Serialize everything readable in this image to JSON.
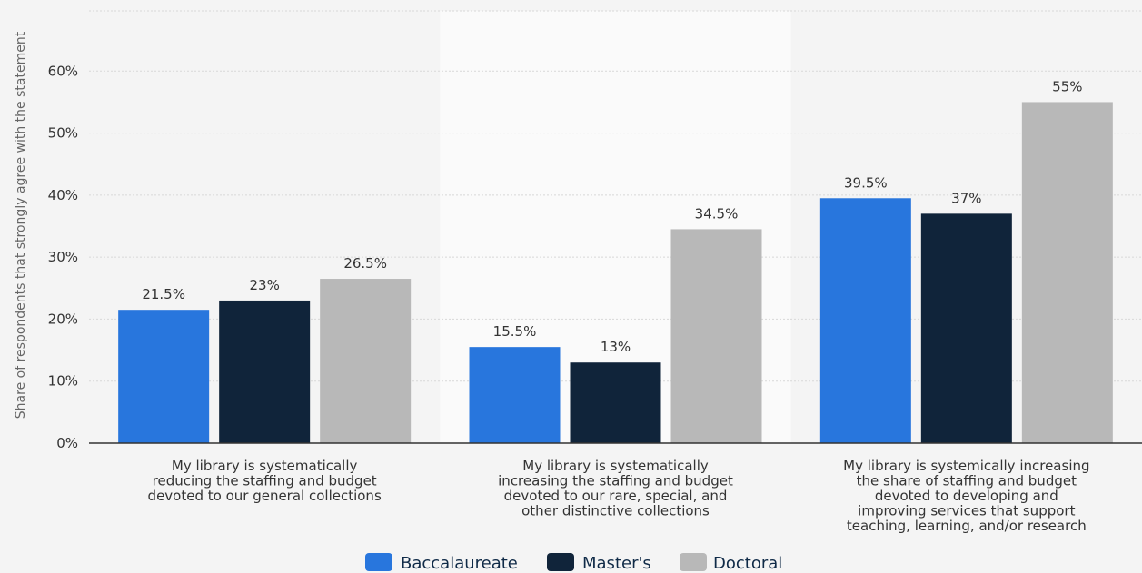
{
  "chart_data": {
    "type": "bar",
    "ylabel": "Share of respondents that strongly agree with the statement",
    "ylim": [
      0,
      70
    ],
    "yticks": [
      0,
      10,
      20,
      30,
      40,
      50,
      60
    ],
    "ytick_labels": [
      "0%",
      "10%",
      "20%",
      "30%",
      "40%",
      "50%",
      "60%"
    ],
    "grid": true,
    "legend_position": "bottom",
    "categories": [
      [
        "My library is systematically",
        "reducing the staffing and budget",
        "devoted to our general collections"
      ],
      [
        "My library is systematically",
        "increasing the staffing and budget",
        "devoted to our rare, special, and",
        "other distinctive collections"
      ],
      [
        "My library is systemically increasing",
        "the share of staffing and budget",
        "devoted to developing and",
        "improving services that support",
        "teaching, learning, and/or research"
      ]
    ],
    "series": [
      {
        "name": "Baccalaureate",
        "color": "#2876dd",
        "values": [
          21.5,
          15.5,
          39.5
        ],
        "labels": [
          "21.5%",
          "15.5%",
          "39.5%"
        ]
      },
      {
        "name": "Master's",
        "color": "#10243a",
        "values": [
          23,
          13,
          37
        ],
        "labels": [
          "23%",
          "13%",
          "37%"
        ]
      },
      {
        "name": "Doctoral",
        "color": "#b8b8b8",
        "values": [
          26.5,
          34.5,
          55
        ],
        "labels": [
          "26.5%",
          "34.5%",
          "55%"
        ]
      }
    ]
  }
}
